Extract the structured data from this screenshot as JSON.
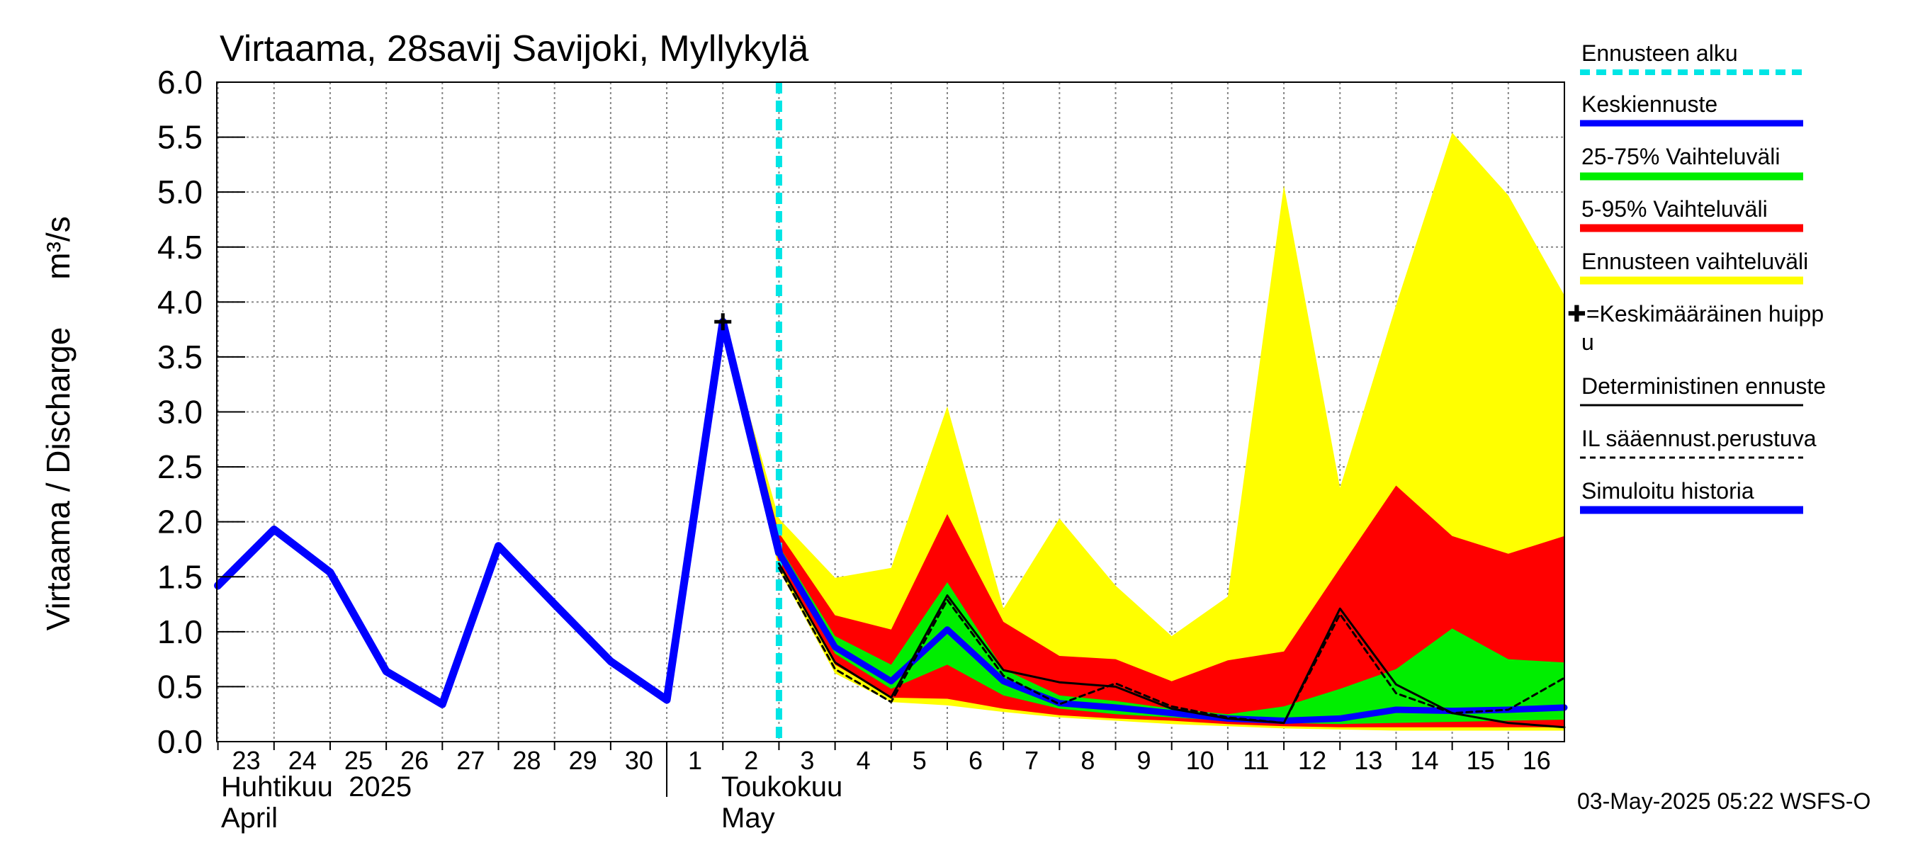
{
  "chart_data": {
    "type": "area",
    "title": "Virtaama, 28savij Savijoki, Myllykylä",
    "ylabel": "Virtaama / Discharge",
    "yunit": "m³/s",
    "ylim": [
      0,
      6.0
    ],
    "yticks": [
      0.0,
      0.5,
      1.0,
      1.5,
      2.0,
      2.5,
      3.0,
      3.5,
      4.0,
      4.5,
      5.0,
      5.5,
      6.0
    ],
    "ytick_labels": [
      "0.0",
      "0.5",
      "1.0",
      "1.5",
      "2.0",
      "2.5",
      "3.0",
      "3.5",
      "4.0",
      "4.5",
      "5.0",
      "5.5",
      "6.0"
    ],
    "xlim": [
      -0.02,
      24.0
    ],
    "x_day_labels": [
      "23",
      "24",
      "25",
      "26",
      "27",
      "28",
      "29",
      "30",
      "1",
      "2",
      "3",
      "4",
      "5",
      "6",
      "7",
      "8",
      "9",
      "10",
      "11",
      "12",
      "13",
      "14",
      "15",
      "16"
    ],
    "month_labels": {
      "april_fi": "Huhtikuu  2025",
      "april_en": "April",
      "may_fi": "Toukokuu",
      "may_en": "May"
    },
    "month_boundary_x": 8.0,
    "forecast_start_x": 10.0,
    "grid": true,
    "legend_position": "right",
    "legend": {
      "forecast_start": "Ennusteen alku",
      "mean_forecast": "Keskiennuste",
      "range_25_75": "25-75% Vaihteluväli",
      "range_5_95": "5-95% Vaihteluväli",
      "forecast_range": "Ennusteen vaihteluväli",
      "mean_peak_line1": "✚=Keskimääräinen huipp",
      "mean_peak_line2": "u",
      "deterministic": "Deterministinen ennuste",
      "il_weather": "IL sääennust.perustuva",
      "simulated_history": "Simuloitu historia"
    },
    "colors": {
      "forecast_start": "#00e5e5",
      "mean_forecast": "#0000ff",
      "range_25_75": "#00ee00",
      "range_5_95": "#ff0000",
      "forecast_range": "#ffff00",
      "deterministic": "#000000",
      "il_weather": "#000000",
      "simulated_history": "#0000ff",
      "grid": "#888888"
    },
    "series": {
      "simulated_history": {
        "x": [
          0,
          1,
          2,
          3,
          4,
          5,
          6,
          7,
          8,
          9,
          10
        ],
        "y": [
          1.42,
          1.93,
          1.54,
          0.64,
          0.34,
          1.78,
          1.25,
          0.73,
          0.38,
          3.82,
          1.72
        ]
      },
      "forecast_range": {
        "x": [
          9,
          10,
          11,
          12,
          13,
          14,
          15,
          16,
          17,
          18,
          19,
          20,
          21,
          22,
          23,
          24
        ],
        "upper": [
          3.82,
          2.03,
          1.49,
          1.58,
          3.05,
          1.21,
          2.03,
          1.42,
          0.96,
          1.32,
          5.06,
          2.31,
          3.97,
          5.54,
          4.97,
          4.06
        ],
        "lower": [
          3.82,
          1.56,
          0.62,
          0.36,
          0.33,
          0.27,
          0.22,
          0.19,
          0.16,
          0.14,
          0.12,
          0.11,
          0.1,
          0.1,
          0.1,
          0.1
        ]
      },
      "range_5_95": {
        "x": [
          9,
          10,
          11,
          12,
          13,
          14,
          15,
          16,
          17,
          18,
          19,
          20,
          21,
          22,
          23,
          24
        ],
        "upper": [
          3.82,
          1.9,
          1.15,
          1.02,
          2.07,
          1.09,
          0.78,
          0.75,
          0.55,
          0.74,
          0.82,
          1.58,
          2.33,
          1.87,
          1.71,
          1.87
        ],
        "lower": [
          3.82,
          1.62,
          0.7,
          0.4,
          0.39,
          0.3,
          0.24,
          0.21,
          0.19,
          0.16,
          0.14,
          0.13,
          0.13,
          0.13,
          0.13,
          0.13
        ]
      },
      "range_25_75": {
        "x": [
          9,
          10,
          11,
          12,
          13,
          14,
          15,
          16,
          17,
          18,
          19,
          20,
          21,
          22,
          23,
          24
        ],
        "upper": [
          3.82,
          1.78,
          0.96,
          0.7,
          1.45,
          0.66,
          0.42,
          0.37,
          0.3,
          0.25,
          0.32,
          0.48,
          0.66,
          1.03,
          0.75,
          0.72
        ],
        "lower": [
          3.82,
          1.68,
          0.8,
          0.48,
          0.7,
          0.42,
          0.3,
          0.25,
          0.22,
          0.19,
          0.17,
          0.16,
          0.17,
          0.18,
          0.19,
          0.2
        ]
      },
      "mean_forecast": {
        "x": [
          10,
          11,
          12,
          13,
          14,
          15,
          16,
          17,
          18,
          19,
          20,
          21,
          22,
          23,
          24
        ],
        "y": [
          1.72,
          0.86,
          0.55,
          1.02,
          0.55,
          0.35,
          0.31,
          0.26,
          0.21,
          0.19,
          0.21,
          0.29,
          0.28,
          0.29,
          0.31
        ]
      },
      "deterministic": {
        "x": [
          10,
          11,
          12,
          13,
          14,
          15,
          16,
          17,
          18,
          19,
          20,
          21,
          22,
          23,
          24
        ],
        "y": [
          1.62,
          0.72,
          0.4,
          1.33,
          0.65,
          0.54,
          0.5,
          0.3,
          0.21,
          0.17,
          1.21,
          0.52,
          0.26,
          0.17,
          0.13
        ]
      },
      "il_weather": {
        "x": [
          10,
          11,
          12,
          13,
          14,
          15,
          16,
          17,
          18,
          19,
          20,
          21,
          22,
          23,
          24
        ],
        "y": [
          1.58,
          0.66,
          0.36,
          1.29,
          0.6,
          0.34,
          0.53,
          0.32,
          0.22,
          0.17,
          1.16,
          0.44,
          0.26,
          0.29,
          0.58
        ]
      },
      "mean_peak": {
        "x": 9,
        "y": 3.82
      }
    },
    "footer": "03-May-2025 05:22 WSFS-O"
  }
}
